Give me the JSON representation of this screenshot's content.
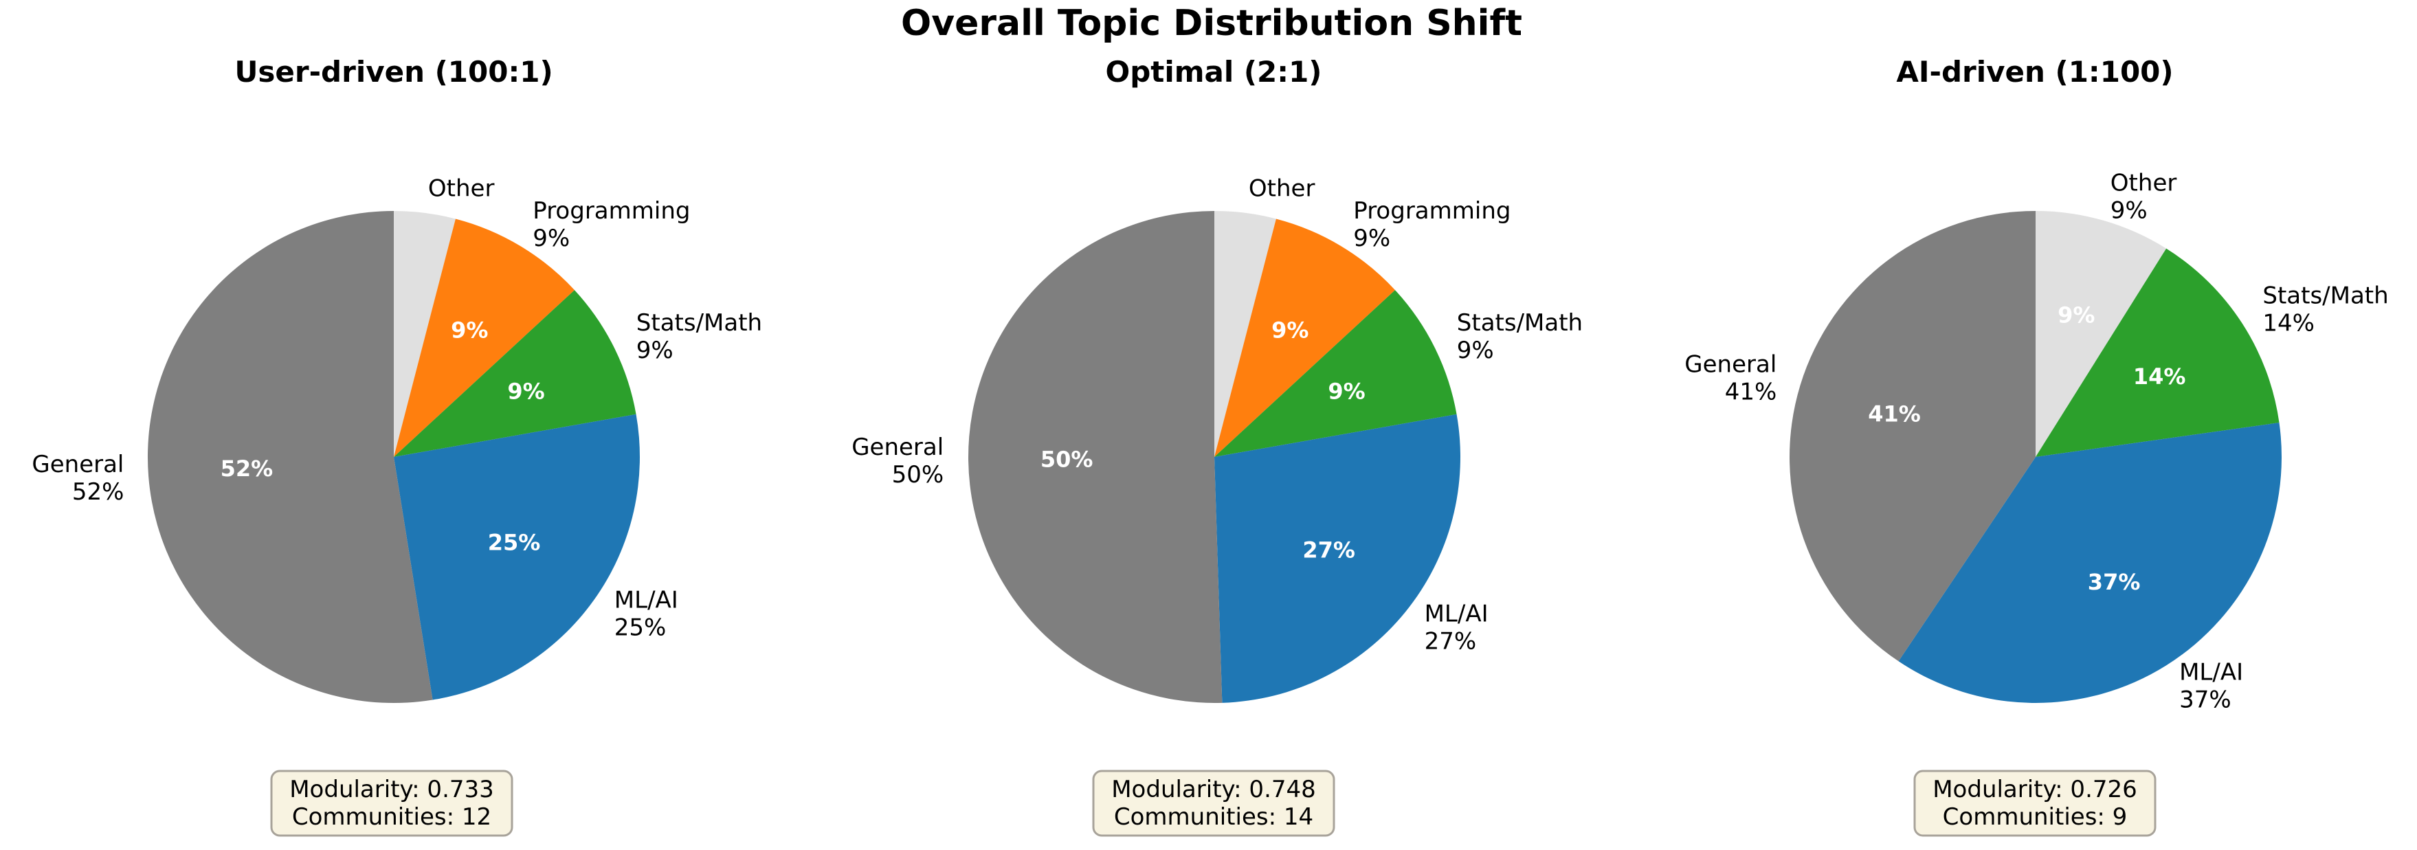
{
  "figure": {
    "title": "Overall Topic Distribution Shift"
  },
  "colors": {
    "Other": "#e0e0e0",
    "Programming": "#ff7f0e",
    "Stats/Math": "#2ca02c",
    "ML/AI": "#1f77b4",
    "General": "#7f7f7f",
    "inside_label": "#ffffff",
    "box_fill": "#f8f3e1",
    "box_edge": "#a8a39a"
  },
  "chart_data": [
    {
      "type": "pie",
      "title": "User-driven (100:1)",
      "slices": [
        {
          "label": "Other",
          "value": 4,
          "pct_label": ""
        },
        {
          "label": "Programming",
          "value": 9,
          "pct_label": "9%"
        },
        {
          "label": "Stats/Math",
          "value": 9,
          "pct_label": "9%"
        },
        {
          "label": "ML/AI",
          "value": 25,
          "pct_label": "25%"
        },
        {
          "label": "General",
          "value": 52,
          "pct_label": "52%"
        }
      ],
      "info": [
        "Modularity: 0.733",
        "Communities: 12"
      ]
    },
    {
      "type": "pie",
      "title": "Optimal (2:1)",
      "slices": [
        {
          "label": "Other",
          "value": 4,
          "pct_label": ""
        },
        {
          "label": "Programming",
          "value": 9,
          "pct_label": "9%"
        },
        {
          "label": "Stats/Math",
          "value": 9,
          "pct_label": "9%"
        },
        {
          "label": "ML/AI",
          "value": 27,
          "pct_label": "27%"
        },
        {
          "label": "General",
          "value": 50,
          "pct_label": "50%"
        }
      ],
      "info": [
        "Modularity: 0.748",
        "Communities: 14"
      ]
    },
    {
      "type": "pie",
      "title": "AI-driven (1:100)",
      "slices": [
        {
          "label": "Other",
          "value": 9,
          "pct_label": "9%"
        },
        {
          "label": "Stats/Math",
          "value": 14,
          "pct_label": "14%"
        },
        {
          "label": "ML/AI",
          "value": 37,
          "pct_label": "37%"
        },
        {
          "label": "General",
          "value": 41,
          "pct_label": "41%"
        }
      ],
      "info": [
        "Modularity: 0.726",
        "Communities: 9"
      ]
    }
  ]
}
